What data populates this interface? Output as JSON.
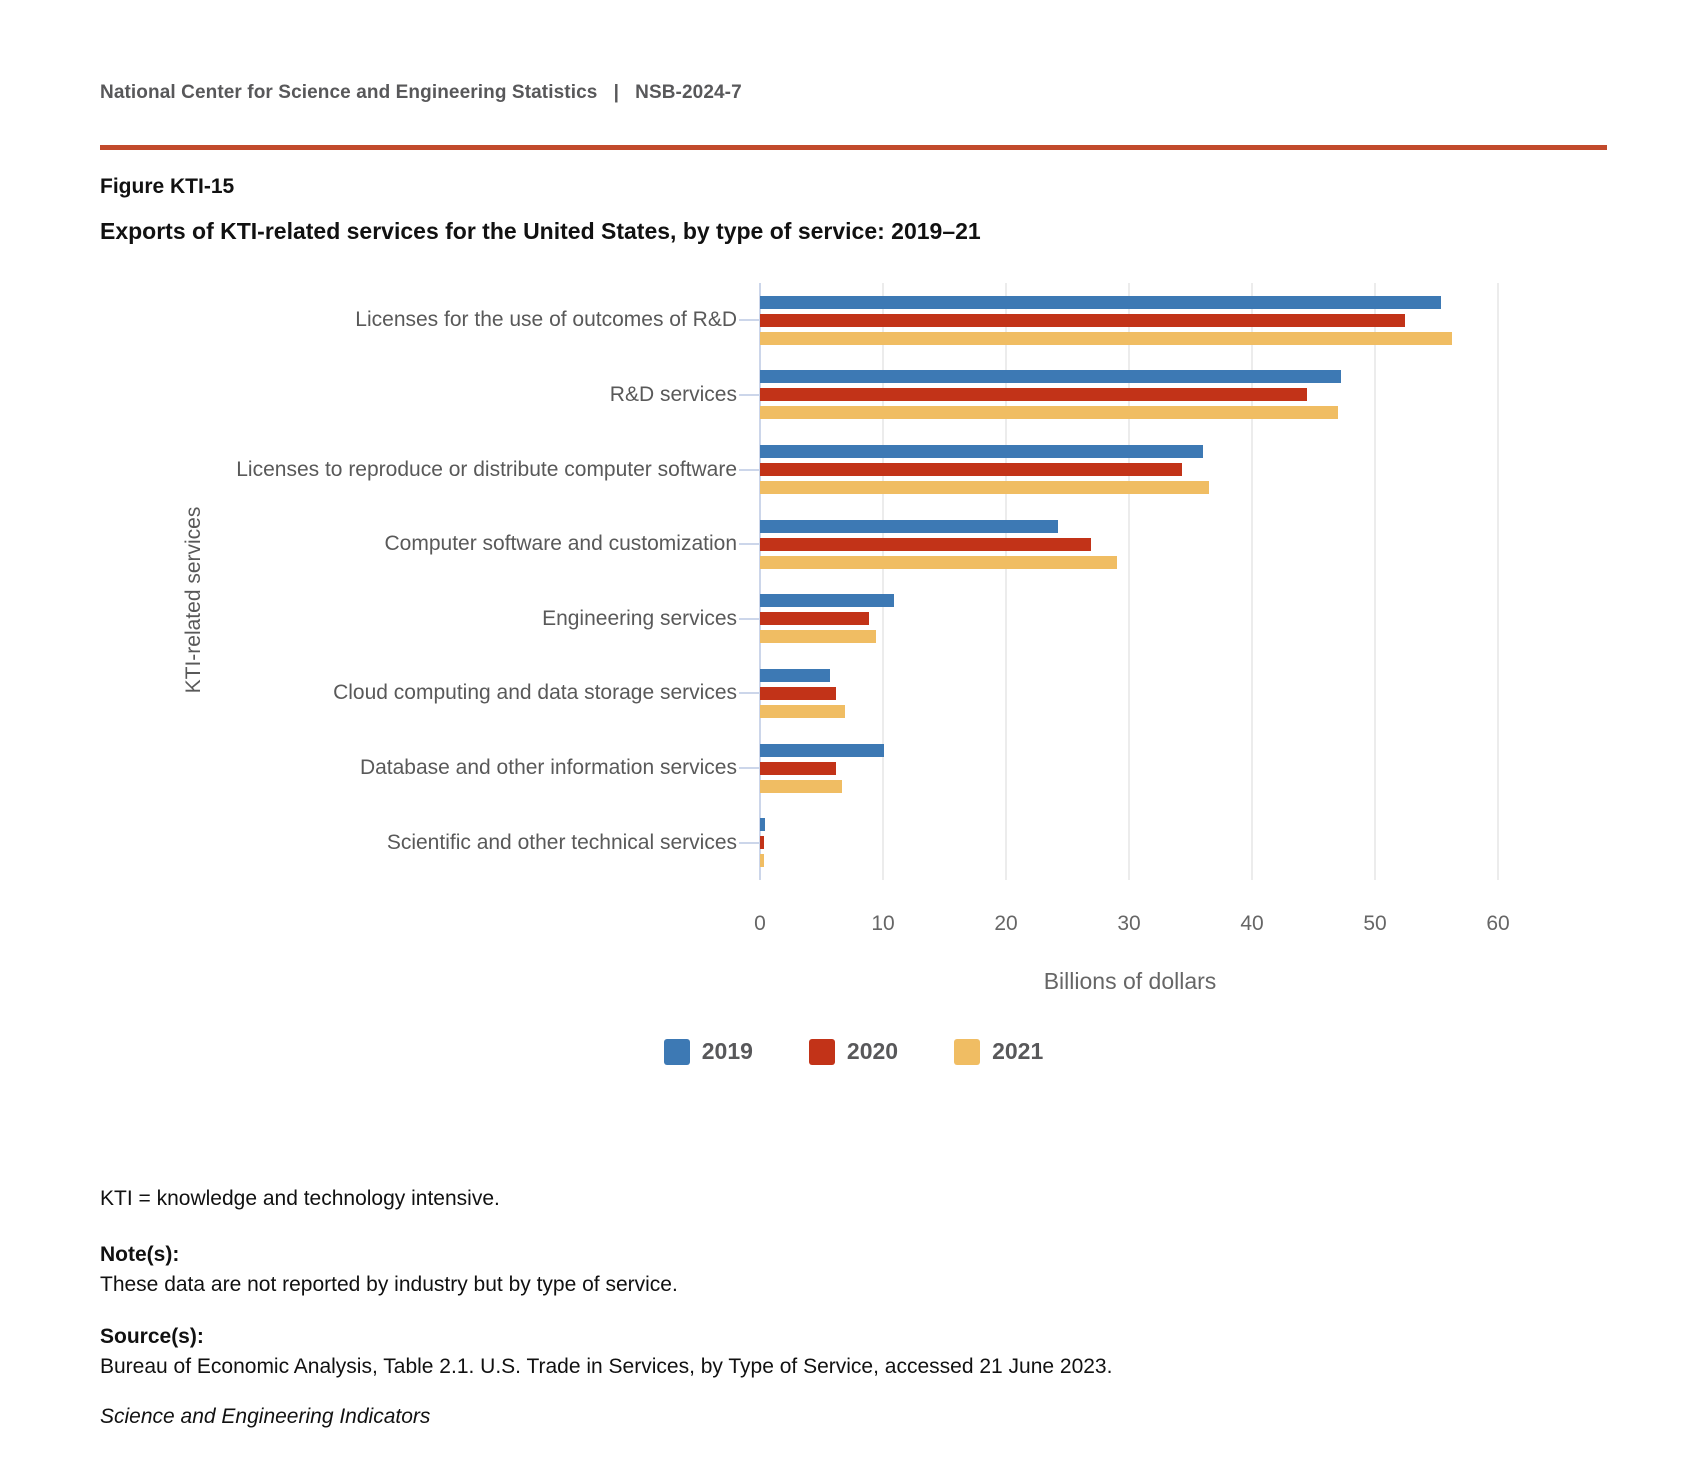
{
  "header": {
    "org": "National Center for Science and Engineering Statistics",
    "separator": "|",
    "report_id": "NSB-2024-7",
    "rule_color": "#c24a2c"
  },
  "figure": {
    "label": "Figure KTI-15",
    "title": "Exports of KTI-related services for the United States, by type of service: 2019–21"
  },
  "chart_data": {
    "type": "bar",
    "orientation": "horizontal",
    "title": "Exports of KTI-related services for the United States, by type of service: 2019–21",
    "categories": [
      "Licenses for the use of outcomes of R&D",
      "R&D services",
      "Licenses to reproduce or distribute computer software",
      "Computer software and customization",
      "Engineering services",
      "Cloud computing and data storage services",
      "Database and other information services",
      "Scientific and other technical services"
    ],
    "series": [
      {
        "name": "2019",
        "color": "#3d79b4",
        "values": [
          55.4,
          47.2,
          36.0,
          24.2,
          10.9,
          5.7,
          10.1,
          0.4
        ]
      },
      {
        "name": "2020",
        "color": "#c23318",
        "values": [
          52.4,
          44.5,
          34.3,
          26.9,
          8.9,
          6.2,
          6.2,
          0.3
        ]
      },
      {
        "name": "2021",
        "color": "#f0bd63",
        "values": [
          56.3,
          47.0,
          36.5,
          29.0,
          9.4,
          6.9,
          6.7,
          0.3
        ]
      }
    ],
    "xlabel": "Billions of dollars",
    "ylabel": "KTI-related services",
    "xlim": [
      0,
      60
    ],
    "xticks": [
      0,
      10,
      20,
      30,
      40,
      50,
      60
    ],
    "grid": true,
    "legend_position": "bottom",
    "axis_line_color": "#ccd6ea",
    "gridline_color": "#ececec",
    "label_color": "#595959",
    "tick_label_color": "#666666"
  },
  "footnotes": {
    "abbreviation": "KTI = knowledge and technology intensive.",
    "notes_heading": "Note(s):",
    "notes_body": "These data are not reported by industry but by type of service.",
    "sources_heading": "Source(s):",
    "sources_body": "Bureau of Economic Analysis, Table 2.1. U.S. Trade in Services, by Type of Service, accessed 21 June 2023.",
    "attribution": "Science and Engineering Indicators"
  }
}
